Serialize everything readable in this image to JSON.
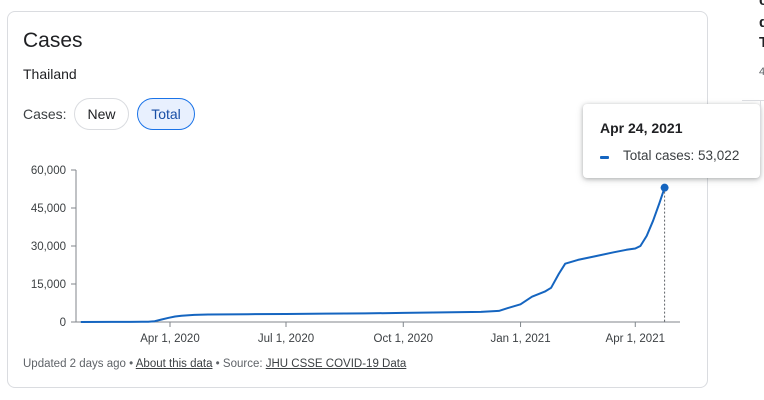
{
  "card": {
    "title": "Cases",
    "location": "Thailand",
    "toggle_label": "Cases:",
    "toggle_options": [
      "New",
      "Total"
    ],
    "selected_option": "Total"
  },
  "tooltip": {
    "date": "Apr 24, 2021",
    "series_label": "Total cases: 53,022"
  },
  "footer": {
    "updated": "Updated 2 days ago",
    "sep1": " • ",
    "about_link": "About this data",
    "sep2": " • Source: ",
    "source_link": "JHU CSSE COVID-19 Data"
  },
  "right_edge": {
    "chars": [
      "c",
      "d",
      "T"
    ],
    "value_fragment": "4"
  },
  "colors": {
    "line": "#1565c0",
    "chip_selected_bg": "#e8f0fe",
    "chip_selected_border": "#1a73e8"
  },
  "chart_data": {
    "type": "line",
    "title": "Cases",
    "series": [
      {
        "name": "Total cases",
        "points": [
          [
            "2020-01-22",
            0
          ],
          [
            "2020-02-15",
            35
          ],
          [
            "2020-03-01",
            42
          ],
          [
            "2020-03-10",
            60
          ],
          [
            "2020-03-15",
            114
          ],
          [
            "2020-03-20",
            322
          ],
          [
            "2020-03-25",
            934
          ],
          [
            "2020-03-31",
            1651
          ],
          [
            "2020-04-05",
            2169
          ],
          [
            "2020-04-10",
            2473
          ],
          [
            "2020-04-20",
            2792
          ],
          [
            "2020-05-01",
            2960
          ],
          [
            "2020-06-01",
            3081
          ],
          [
            "2020-07-01",
            3173
          ],
          [
            "2020-08-01",
            3310
          ],
          [
            "2020-09-01",
            3411
          ],
          [
            "2020-10-01",
            3600
          ],
          [
            "2020-11-01",
            3780
          ],
          [
            "2020-12-01",
            4000
          ],
          [
            "2020-12-15",
            4400
          ],
          [
            "2020-12-22",
            5500
          ],
          [
            "2021-01-01",
            7000
          ],
          [
            "2021-01-10",
            10000
          ],
          [
            "2021-01-20",
            12000
          ],
          [
            "2021-01-25",
            13500
          ],
          [
            "2021-01-31",
            19000
          ],
          [
            "2021-02-05",
            23000
          ],
          [
            "2021-02-15",
            24500
          ],
          [
            "2021-03-01",
            26000
          ],
          [
            "2021-03-15",
            27500
          ],
          [
            "2021-03-25",
            28500
          ],
          [
            "2021-04-01",
            29000
          ],
          [
            "2021-04-05",
            30000
          ],
          [
            "2021-04-10",
            34000
          ],
          [
            "2021-04-15",
            40000
          ],
          [
            "2021-04-20",
            47000
          ],
          [
            "2021-04-24",
            53022
          ]
        ]
      }
    ],
    "y_ticks": [
      "0",
      "15,000",
      "30,000",
      "45,000",
      "60,000"
    ],
    "y_tick_values": [
      0,
      15000,
      30000,
      45000,
      60000
    ],
    "x_ticks": [
      "Apr 1, 2020",
      "Jul 1, 2020",
      "Oct 1, 2020",
      "Jan 1, 2021",
      "Apr 1, 2021"
    ],
    "x_tick_dates": [
      "2020-04-01",
      "2020-07-01",
      "2020-10-01",
      "2021-01-01",
      "2021-04-01"
    ],
    "ylim": [
      0,
      60000
    ],
    "xlim": [
      "2020-01-01",
      "2021-04-24"
    ],
    "grid": false,
    "highlight": {
      "date": "2021-04-24",
      "value": 53022
    }
  }
}
